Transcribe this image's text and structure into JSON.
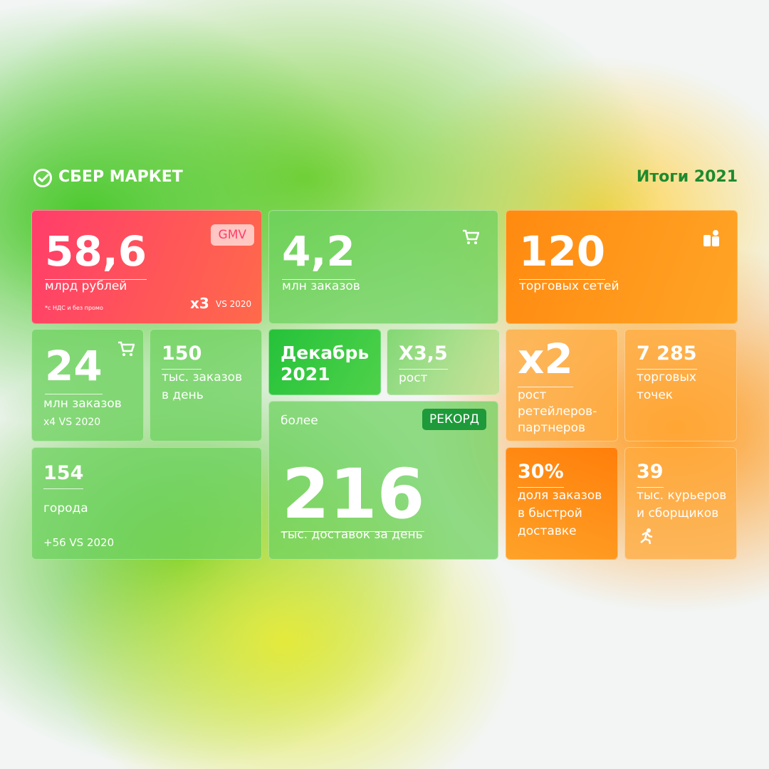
{
  "header": {
    "brand": "СБЕР МАРКЕТ",
    "title": "Итоги 2021"
  },
  "cards": [
    {
      "value": "58,6",
      "badge": "GMV",
      "label": [
        "млрд рублей"
      ],
      "note": "*с НДС и без промо",
      "multiplier": "x3",
      "compare": "VS 2020"
    },
    {
      "value": "4,2",
      "label": [
        "млн заказов"
      ]
    },
    {
      "value": "120",
      "label": [
        "торговых сетей"
      ]
    },
    {
      "value": "24",
      "label": [
        "млн заказов"
      ],
      "compare": "x4 VS 2020"
    },
    {
      "value": "150",
      "label": [
        "тыс. заказов",
        "в день"
      ]
    },
    {
      "value": [
        "Декабрь",
        "2021"
      ]
    },
    {
      "value": "X3,5",
      "label": [
        "рост"
      ]
    },
    {
      "value": "154",
      "label": [
        "города"
      ],
      "compare": "+56 VS 2020"
    },
    {
      "prefix": "более",
      "badge": "РЕКОРД",
      "value": "216",
      "label": [
        "тыс. доставок за день"
      ]
    },
    {
      "value": "x2",
      "label": [
        "рост",
        "ретейлеров-",
        "партнеров"
      ]
    },
    {
      "value": "7 285",
      "label": [
        "торговых",
        "точек"
      ]
    },
    {
      "value": "30%",
      "label": [
        "доля заказов",
        "в быстрой",
        "доставке"
      ]
    },
    {
      "value": "39",
      "label": [
        "тыс. курьеров",
        "и сборщиков"
      ]
    }
  ]
}
